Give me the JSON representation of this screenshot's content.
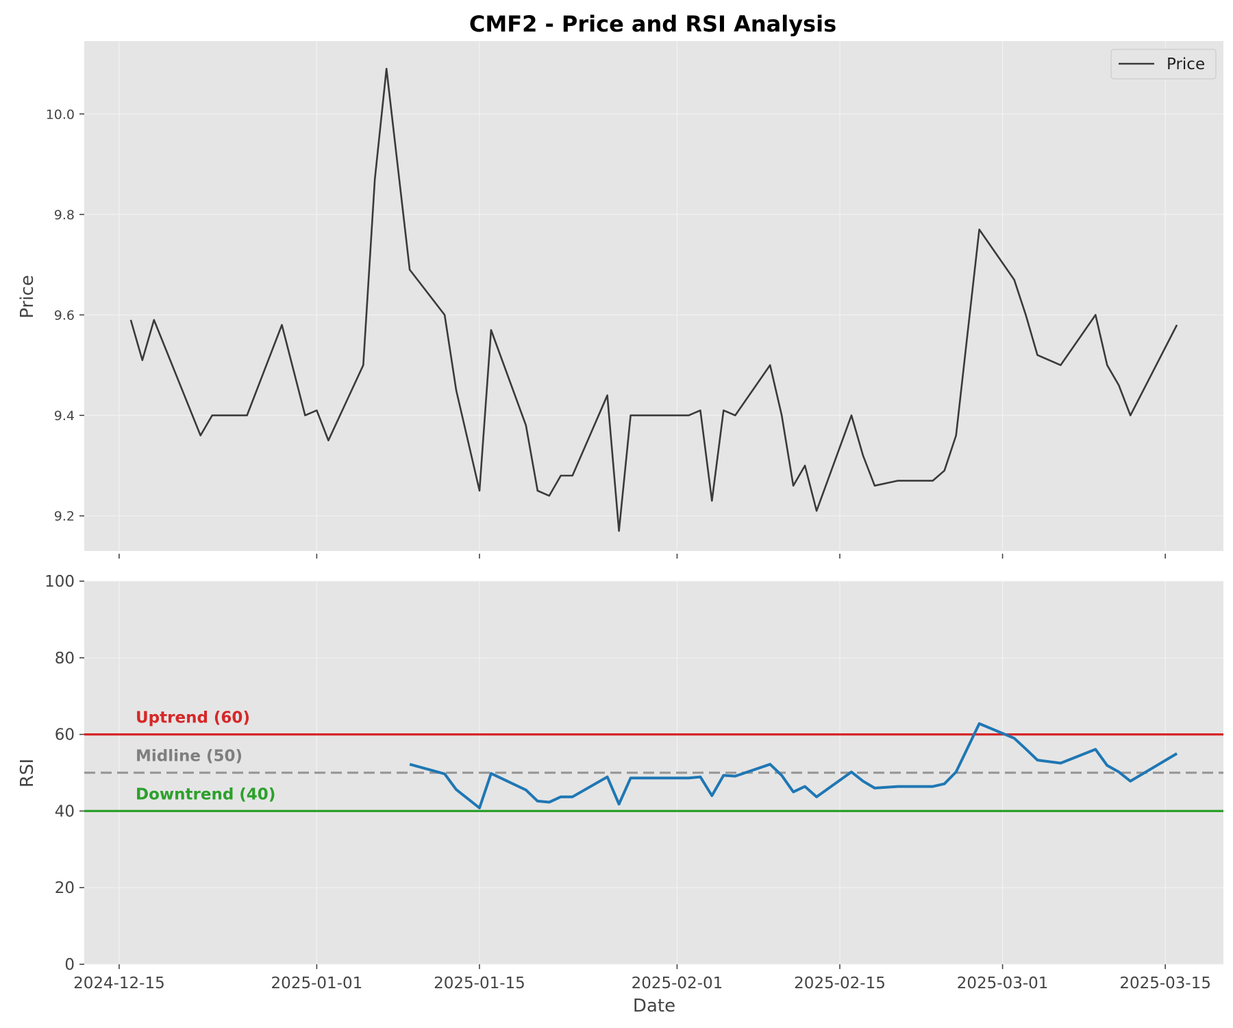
{
  "colors": {
    "price_line": "#3a3a3a",
    "rsi_line": "#1f77b4",
    "uptrend": "#d62728",
    "midline": "#999999",
    "midline_label": "#7f7f7f",
    "downtrend": "#2ca02c",
    "panel_bg": "#e5e5e5",
    "grid": "#f2f2f2"
  },
  "chart_data": {
    "type": "line",
    "title": "CMF2 - Price and RSI Analysis",
    "xlabel": "Date",
    "x_ticks": [
      "2024-12-15",
      "2025-01-01",
      "2025-01-15",
      "2025-02-01",
      "2025-02-15",
      "2025-03-01",
      "2025-03-15"
    ],
    "x_range": [
      "2024-12-12",
      "2025-03-20"
    ],
    "panels": [
      {
        "name": "price",
        "ylabel": "Price",
        "ylim": [
          9.13,
          10.145
        ],
        "yticks": [
          "9.2",
          "9.4",
          "9.6",
          "9.8",
          "10.0"
        ],
        "grid": true,
        "legend": {
          "position": "top-right",
          "entries": [
            "Price"
          ]
        },
        "series": [
          {
            "name": "Price",
            "points": [
              [
                "2024-12-16",
                9.59
              ],
              [
                "2024-12-17",
                9.51
              ],
              [
                "2024-12-18",
                9.59
              ],
              [
                "2024-12-22",
                9.36
              ],
              [
                "2024-12-23",
                9.4
              ],
              [
                "2024-12-26",
                9.4
              ],
              [
                "2024-12-29",
                9.58
              ],
              [
                "2024-12-31",
                9.4
              ],
              [
                "2025-01-01",
                9.41
              ],
              [
                "2025-01-02",
                9.35
              ],
              [
                "2025-01-05",
                9.5
              ],
              [
                "2025-01-06",
                9.87
              ],
              [
                "2025-01-07",
                10.09
              ],
              [
                "2025-01-09",
                9.69
              ],
              [
                "2025-01-12",
                9.6
              ],
              [
                "2025-01-13",
                9.45
              ],
              [
                "2025-01-15",
                9.25
              ],
              [
                "2025-01-16",
                9.57
              ],
              [
                "2025-01-19",
                9.38
              ],
              [
                "2025-01-20",
                9.25
              ],
              [
                "2025-01-21",
                9.24
              ],
              [
                "2025-01-22",
                9.28
              ],
              [
                "2025-01-23",
                9.28
              ],
              [
                "2025-01-26",
                9.44
              ],
              [
                "2025-01-27",
                9.17
              ],
              [
                "2025-01-28",
                9.4
              ],
              [
                "2025-02-02",
                9.4
              ],
              [
                "2025-02-03",
                9.41
              ],
              [
                "2025-02-04",
                9.23
              ],
              [
                "2025-02-05",
                9.41
              ],
              [
                "2025-02-06",
                9.4
              ],
              [
                "2025-02-09",
                9.5
              ],
              [
                "2025-02-10",
                9.4
              ],
              [
                "2025-02-11",
                9.26
              ],
              [
                "2025-02-12",
                9.3
              ],
              [
                "2025-02-13",
                9.21
              ],
              [
                "2025-02-16",
                9.4
              ],
              [
                "2025-02-17",
                9.32
              ],
              [
                "2025-02-18",
                9.26
              ],
              [
                "2025-02-20",
                9.27
              ],
              [
                "2025-02-23",
                9.27
              ],
              [
                "2025-02-24",
                9.29
              ],
              [
                "2025-02-25",
                9.36
              ],
              [
                "2025-02-27",
                9.77
              ],
              [
                "2025-03-02",
                9.67
              ],
              [
                "2025-03-03",
                9.6
              ],
              [
                "2025-03-04",
                9.52
              ],
              [
                "2025-03-06",
                9.5
              ],
              [
                "2025-03-09",
                9.6
              ],
              [
                "2025-03-10",
                9.5
              ],
              [
                "2025-03-11",
                9.46
              ],
              [
                "2025-03-12",
                9.4
              ],
              [
                "2025-03-16",
                9.58
              ]
            ]
          }
        ]
      },
      {
        "name": "rsi",
        "ylabel": "RSI",
        "ylim": [
          0,
          100
        ],
        "yticks": [
          "0",
          "20",
          "40",
          "60",
          "80",
          "100"
        ],
        "grid": true,
        "reference_lines": [
          {
            "name": "uptrend",
            "label": "Uptrend (60)",
            "value": 60,
            "style": "solid"
          },
          {
            "name": "midline",
            "label": "Midline (50)",
            "value": 50,
            "style": "dashed"
          },
          {
            "name": "downtrend",
            "label": "Downtrend (40)",
            "value": 40,
            "style": "solid"
          }
        ],
        "series": [
          {
            "name": "RSI",
            "points": [
              [
                "2025-01-09",
                52.2
              ],
              [
                "2025-01-12",
                49.7
              ],
              [
                "2025-01-13",
                45.6
              ],
              [
                "2025-01-15",
                40.8
              ],
              [
                "2025-01-16",
                49.8
              ],
              [
                "2025-01-19",
                45.5
              ],
              [
                "2025-01-20",
                42.6
              ],
              [
                "2025-01-21",
                42.3
              ],
              [
                "2025-01-22",
                43.7
              ],
              [
                "2025-01-23",
                43.7
              ],
              [
                "2025-01-26",
                48.9
              ],
              [
                "2025-01-27",
                41.8
              ],
              [
                "2025-01-28",
                48.6
              ],
              [
                "2025-02-02",
                48.6
              ],
              [
                "2025-02-03",
                48.9
              ],
              [
                "2025-02-04",
                44.0
              ],
              [
                "2025-02-05",
                49.3
              ],
              [
                "2025-02-06",
                49.1
              ],
              [
                "2025-02-09",
                52.2
              ],
              [
                "2025-02-10",
                49.3
              ],
              [
                "2025-02-11",
                45.0
              ],
              [
                "2025-02-12",
                46.4
              ],
              [
                "2025-02-13",
                43.7
              ],
              [
                "2025-02-16",
                50.2
              ],
              [
                "2025-02-17",
                47.8
              ],
              [
                "2025-02-18",
                46.0
              ],
              [
                "2025-02-20",
                46.4
              ],
              [
                "2025-02-23",
                46.4
              ],
              [
                "2025-02-24",
                47.1
              ],
              [
                "2025-02-25",
                50.2
              ],
              [
                "2025-02-27",
                62.8
              ],
              [
                "2025-03-02",
                59.0
              ],
              [
                "2025-03-03",
                56.2
              ],
              [
                "2025-03-04",
                53.3
              ],
              [
                "2025-03-06",
                52.5
              ],
              [
                "2025-03-09",
                56.1
              ],
              [
                "2025-03-10",
                51.9
              ],
              [
                "2025-03-11",
                50.2
              ],
              [
                "2025-03-12",
                47.8
              ],
              [
                "2025-03-16",
                55.0
              ]
            ]
          }
        ]
      }
    ]
  }
}
